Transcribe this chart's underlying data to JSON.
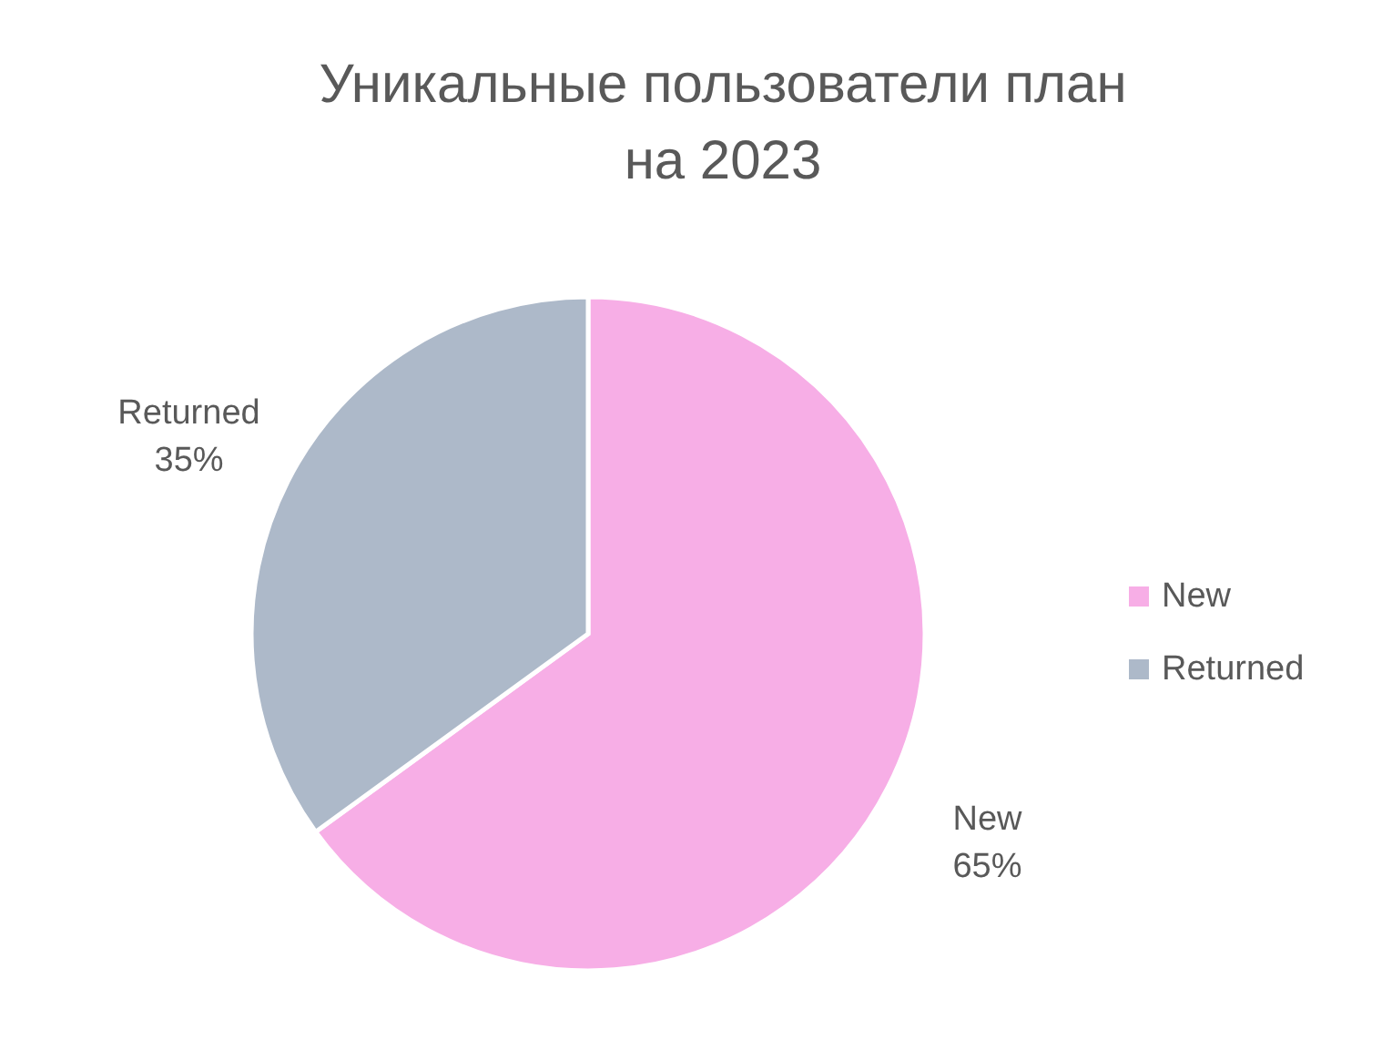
{
  "chart_data": {
    "type": "pie",
    "title": "Уникальные пользователи план на 2023",
    "categories": [
      "New",
      "Returned"
    ],
    "values": [
      65,
      35
    ],
    "colors": [
      "#f7aee6",
      "#adb9c9"
    ],
    "value_labels": [
      "65%",
      "35%"
    ],
    "legend": "right"
  }
}
